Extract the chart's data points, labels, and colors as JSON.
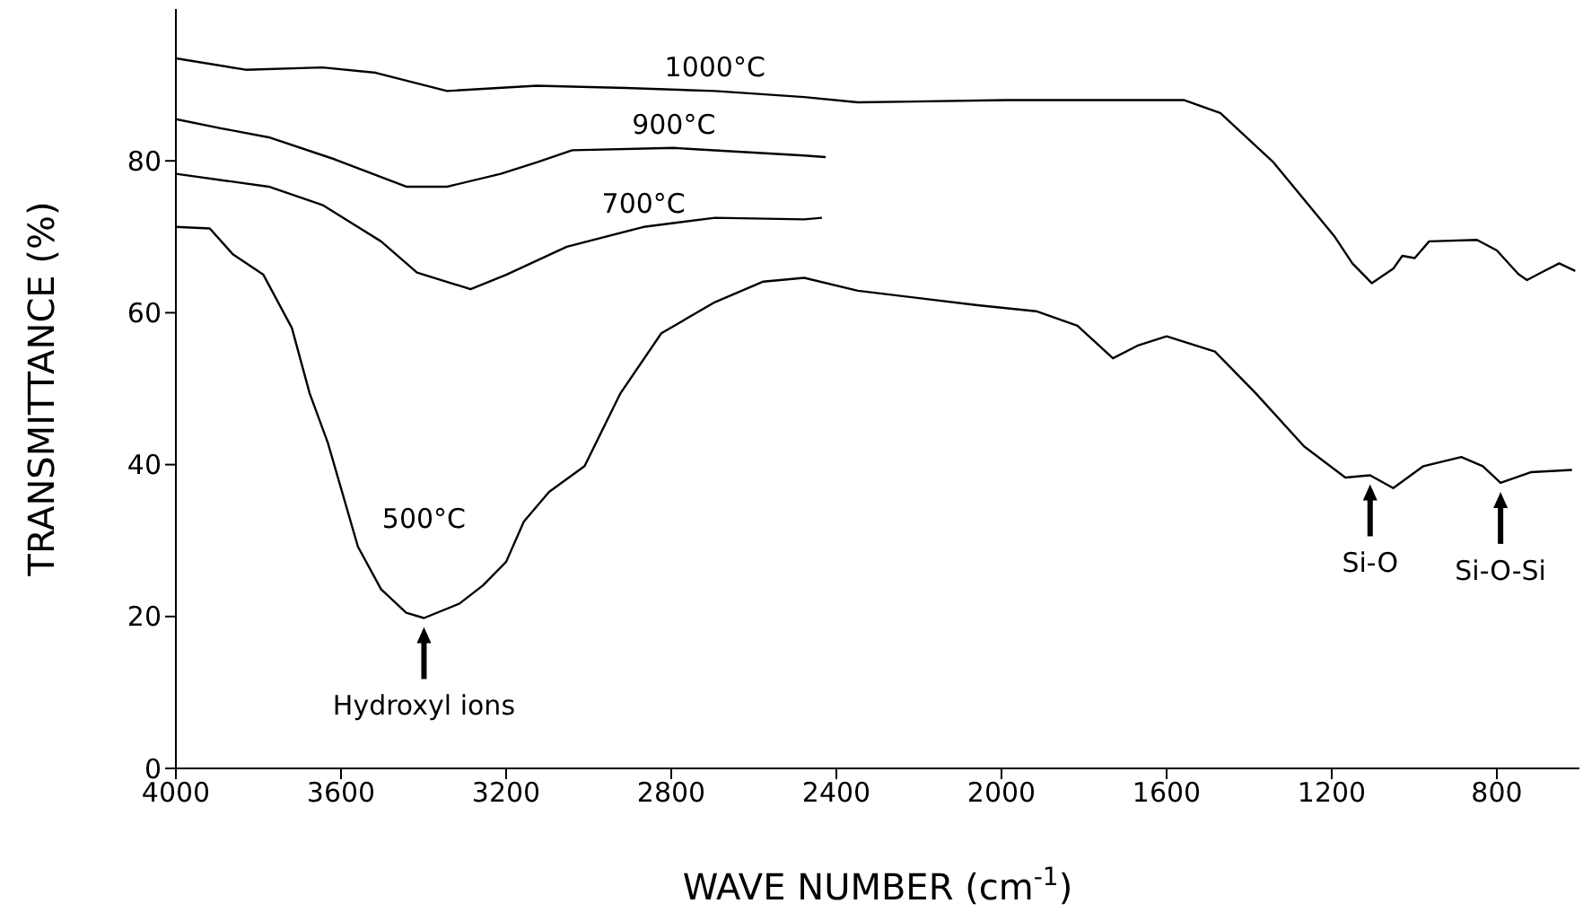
{
  "chart_data": {
    "type": "line",
    "xlabel": "WAVE NUMBER (cm$^{-1}$)",
    "ylabel": "TRANSMITTANCE (%)",
    "xlim": [
      4000,
      600
    ],
    "xticks": [
      4000,
      3600,
      3200,
      2800,
      2400,
      2000,
      1600,
      1200,
      800
    ],
    "ylim": [
      0,
      100
    ],
    "yticks": [
      0,
      20,
      40,
      60,
      80
    ],
    "grid": false,
    "legend": false,
    "marker": "none",
    "line_style": "solid",
    "series": [
      {
        "name": "1000°C",
        "color": "#000000",
        "x": [
          4000,
          3831,
          3645,
          3516,
          3343,
          3126,
          2910,
          2694,
          2478,
          2348,
          1989,
          1700,
          1557,
          1470,
          1341,
          1194,
          1150,
          1103,
          1051,
          1029,
          999,
          964,
          848,
          800,
          748,
          727,
          692,
          649,
          610
        ],
        "values": [
          93.5,
          92,
          92.3,
          91.6,
          89.2,
          89.9,
          89.6,
          89.2,
          88.4,
          87.7,
          88,
          88,
          88,
          86.3,
          79.8,
          70.1,
          66.5,
          63.9,
          65.8,
          67.5,
          67.2,
          69.4,
          69.6,
          68.2,
          65.1,
          64.3,
          65.3,
          66.5,
          65.5
        ]
      },
      {
        "name": "900°C",
        "color": "#000000",
        "x": [
          4000,
          3892,
          3775,
          3615,
          3442,
          3343,
          3213,
          3126,
          3040,
          2794,
          2478,
          2426
        ],
        "values": [
          85.5,
          84.3,
          83.1,
          80.2,
          76.6,
          76.6,
          78.3,
          79.8,
          81.4,
          81.7,
          80.7,
          80.5
        ]
      },
      {
        "name": "700°C",
        "color": "#000000",
        "x": [
          4000,
          3775,
          3645,
          3503,
          3416,
          3286,
          3200,
          3053,
          2867,
          2694,
          2478,
          2435
        ],
        "values": [
          78.3,
          76.6,
          74.2,
          69.4,
          65.3,
          63.1,
          65,
          68.7,
          71.3,
          72.5,
          72.3,
          72.5
        ]
      },
      {
        "name": "500°C",
        "color": "#000000",
        "x": [
          4000,
          3918,
          3862,
          3788,
          3719,
          3676,
          3632,
          3559,
          3503,
          3442,
          3399,
          3313,
          3256,
          3200,
          3157,
          3096,
          3010,
          2923,
          2824,
          2694,
          2577,
          2478,
          2348,
          2058,
          1916,
          1816,
          1730,
          1669,
          1600,
          1483,
          1384,
          1267,
          1167,
          1107,
          1051,
          978,
          886,
          834,
          791,
          718,
          618
        ],
        "values": [
          71.3,
          71.1,
          67.7,
          65,
          58,
          49.4,
          42.9,
          29.2,
          23.6,
          20.5,
          19.8,
          21.7,
          24.1,
          27.2,
          32.5,
          36.4,
          39.8,
          49.4,
          57.3,
          61.4,
          64.1,
          64.6,
          62.9,
          61,
          60.2,
          58.3,
          54,
          55.7,
          56.9,
          54.9,
          49.4,
          42.4,
          38.3,
          38.6,
          36.9,
          39.8,
          41,
          39.8,
          37.6,
          39,
          39.3
        ]
      }
    ],
    "annotations": [
      {
        "text": "Hydroxyl ions",
        "x": 3399,
        "y": 19.8
      },
      {
        "text": "Si-O",
        "x": 1107,
        "y": 38.6
      },
      {
        "text": "Si-O-Si",
        "x": 791,
        "y": 37.6
      }
    ]
  }
}
